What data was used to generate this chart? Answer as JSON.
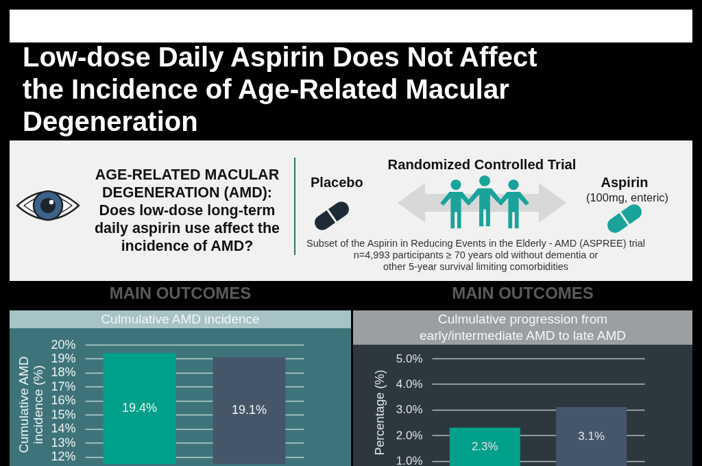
{
  "chart_data": [
    {
      "type": "other",
      "title": "Low-dose Daily Aspirin Does Not Affect the Incidence of Age-Related Macular Degeneration",
      "annotations": [
        "AGE-RELATED MACULAR DEGENERATION (AMD):",
        "Does low-dose long-term daily aspirin use affect the incidence of AMD?",
        "Randomized Controlled Trial",
        "Placebo",
        "Aspirin",
        "(100mg, enteric)",
        "Subset of the Aspirin in Reducing Events in the Elderly - AMD (ASPREE) trial",
        "n=4,993 participants ≥ 70 years old without dementia or other 5-year survival limiting comorbidities"
      ]
    },
    {
      "type": "bar",
      "title": "MAIN OUTCOMES",
      "subtitle": "Culmulative AMD incidence",
      "ylabel": "Cumulative AMD incidence (%)",
      "categories": [
        null,
        null
      ],
      "values": [
        19.4,
        19.1
      ],
      "colors": [
        "#00a08a",
        "#465669"
      ],
      "value_labels": [
        "19.4%",
        "19.1%"
      ],
      "ylim": [
        11.5,
        20
      ],
      "yticks": [
        {
          "value": 12,
          "label": "12%"
        },
        {
          "value": 13,
          "label": "13%"
        },
        {
          "value": 14,
          "label": "14%"
        },
        {
          "value": 15,
          "label": "15%"
        },
        {
          "value": 16,
          "label": "16%"
        },
        {
          "value": 17,
          "label": "17%"
        },
        {
          "value": 18,
          "label": "18%"
        },
        {
          "value": 19,
          "label": "19%"
        },
        {
          "value": 20,
          "label": "20%"
        }
      ],
      "grid": "y",
      "tick_labels": "y"
    },
    {
      "type": "bar",
      "title": "MAIN OUTCOMES",
      "subtitle": "Culmulative progression from early/intermediate AMD to late AMD",
      "ylabel": "Percentage (%)",
      "categories": [
        null,
        null
      ],
      "values": [
        2.3,
        3.1
      ],
      "colors": [
        "#00a08a",
        "#46566a"
      ],
      "value_labels": [
        "2.3%",
        "3.1%"
      ],
      "ylim": [
        0.8,
        5
      ],
      "yticks": [
        {
          "value": 1,
          "label": "1.0%"
        },
        {
          "value": 2,
          "label": "2.0%"
        },
        {
          "value": 3,
          "label": "3.0%"
        },
        {
          "value": 4,
          "label": "4.0%"
        },
        {
          "value": 5,
          "label": "5.0%"
        }
      ],
      "grid": "y",
      "tick_labels": "y"
    }
  ]
}
